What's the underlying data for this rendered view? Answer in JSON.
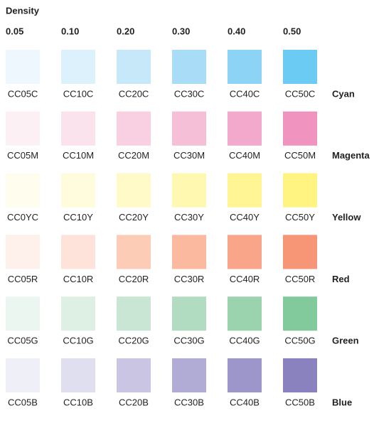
{
  "header": {
    "title": "Density"
  },
  "densities": [
    "0.05",
    "0.10",
    "0.20",
    "0.30",
    "0.40",
    "0.50"
  ],
  "rows": [
    {
      "name": "Cyan",
      "swatches": [
        {
          "label": "CC05C",
          "color": "#eef7fe"
        },
        {
          "label": "CC10C",
          "color": "#ddf1fc"
        },
        {
          "label": "CC20C",
          "color": "#c6e8f9"
        },
        {
          "label": "CC30C",
          "color": "#a8dcf7"
        },
        {
          "label": "CC40C",
          "color": "#8dd3f5"
        },
        {
          "label": "CC50C",
          "color": "#6ccbf3"
        }
      ]
    },
    {
      "name": "Magenta",
      "swatches": [
        {
          "label": "CC05M",
          "color": "#fdf0f5"
        },
        {
          "label": "CC10M",
          "color": "#fbe3ee"
        },
        {
          "label": "CC20M",
          "color": "#f8d0e2"
        },
        {
          "label": "CC30M",
          "color": "#f6bfd8"
        },
        {
          "label": "CC40M",
          "color": "#f2a9cb"
        },
        {
          "label": "CC50M",
          "color": "#f094bf"
        }
      ]
    },
    {
      "name": "Yellow",
      "swatches": [
        {
          "label": "CC0YC",
          "color": "#fffdee"
        },
        {
          "label": "CC10Y",
          "color": "#fffbdd"
        },
        {
          "label": "CC20Y",
          "color": "#fffac7"
        },
        {
          "label": "CC30Y",
          "color": "#fff8b0"
        },
        {
          "label": "CC40Y",
          "color": "#fff594"
        },
        {
          "label": "CC50Y",
          "color": "#fff382"
        }
      ]
    },
    {
      "name": "Red",
      "swatches": [
        {
          "label": "CC05R",
          "color": "#fef1ec"
        },
        {
          "label": "CC10R",
          "color": "#fde3da"
        },
        {
          "label": "CC20R",
          "color": "#fcccb7"
        },
        {
          "label": "CC30R",
          "color": "#fbbaa0"
        },
        {
          "label": "CC40R",
          "color": "#f9a58a"
        },
        {
          "label": "CC50R",
          "color": "#f79676"
        }
      ]
    },
    {
      "name": "Green",
      "swatches": [
        {
          "label": "CC05G",
          "color": "#ecf6f0"
        },
        {
          "label": "CC10G",
          "color": "#def0e4"
        },
        {
          "label": "CC20G",
          "color": "#c8e6d3"
        },
        {
          "label": "CC30G",
          "color": "#b1dcc1"
        },
        {
          "label": "CC40G",
          "color": "#9ad3ae"
        },
        {
          "label": "CC50G",
          "color": "#82ca9c"
        }
      ]
    },
    {
      "name": "Blue",
      "swatches": [
        {
          "label": "CC05B",
          "color": "#efeff8"
        },
        {
          "label": "CC10B",
          "color": "#e0dff0"
        },
        {
          "label": "CC20B",
          "color": "#c9c5e3"
        },
        {
          "label": "CC30B",
          "color": "#b1acd6"
        },
        {
          "label": "CC40B",
          "color": "#9c96ca"
        },
        {
          "label": "CC50B",
          "color": "#8982be"
        }
      ]
    }
  ]
}
